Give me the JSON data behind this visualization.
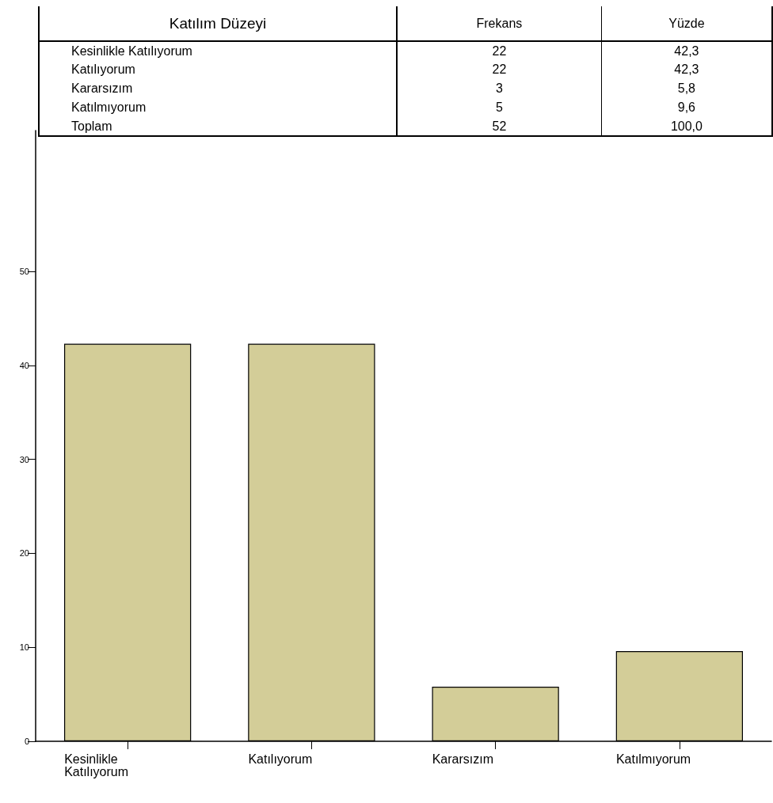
{
  "chart_data": [
    {
      "type": "other",
      "data_labels": true,
      "legend_title": "Katılım Düzeyi",
      "categories": [
        "Kesinlikle Katılıyorum",
        "Katılıyorum",
        "Kararsızım",
        "Katılmıyorum",
        "Toplam"
      ],
      "series": [
        {
          "name": "Frekans",
          "values": [
            22,
            22,
            3,
            5,
            52
          ]
        },
        {
          "name": "Yüzde",
          "values": [
            42.3,
            42.3,
            5.8,
            9.6,
            100.0
          ],
          "value_labels": [
            "42,3",
            "42,3",
            "5,8",
            "9,6",
            "100,0"
          ]
        }
      ]
    },
    {
      "type": "bar",
      "categories": [
        "Kesinlikle Katılıyorum",
        "Katılıyorum",
        "Kararsızım",
        "Katılmıyorum"
      ],
      "values": [
        42.3,
        42.3,
        5.8,
        9.6
      ],
      "color": "#d3cd98",
      "ylim": [
        0,
        65
      ],
      "yticks": [
        0,
        10,
        20,
        30,
        40,
        50
      ],
      "grid": false
    }
  ]
}
